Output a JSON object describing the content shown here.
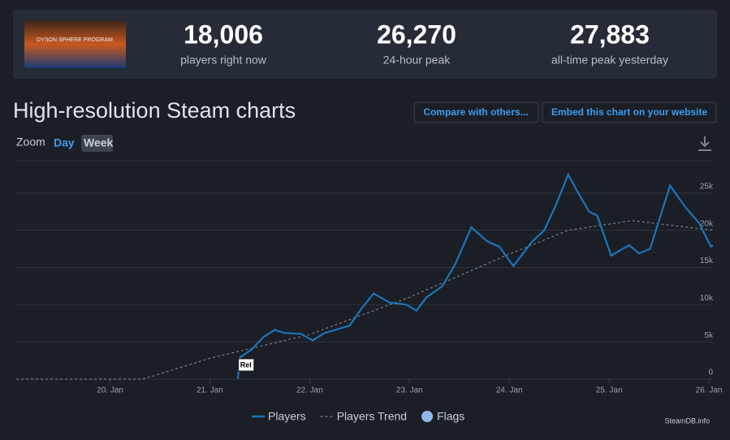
{
  "header": {
    "game_logo_text": "DYSON SPHERE PROGRAM",
    "stats": [
      {
        "value": "18,006",
        "label": "players right now"
      },
      {
        "value": "26,270",
        "label": "24-hour peak"
      },
      {
        "value": "27,883",
        "label": "all-time peak yesterday"
      }
    ]
  },
  "section_title": "High-resolution Steam charts",
  "buttons": [
    "Compare with others...",
    "Embed this chart on your website"
  ],
  "zoom": {
    "label": "Zoom",
    "options": [
      "Day",
      "Week"
    ]
  },
  "credit": "SteamDB.info",
  "chart_data": {
    "type": "line",
    "xlim": [
      19.06,
      26.04
    ],
    "xticks": [
      {
        "value": 20,
        "label": "20. Jan"
      },
      {
        "value": 21,
        "label": "21. Jan"
      },
      {
        "value": 22,
        "label": "22. Jan"
      },
      {
        "value": 23,
        "label": "23. Jan"
      },
      {
        "value": 24,
        "label": "24. Jan"
      },
      {
        "value": 25,
        "label": "25. Jan"
      },
      {
        "value": 26,
        "label": "26. Jan"
      }
    ],
    "ylim": [
      0,
      30000
    ],
    "yticks": [
      0,
      {
        "value": 5000,
        "label": "5k"
      },
      {
        "value": 10000,
        "label": "10k"
      },
      {
        "value": 15000,
        "label": "15k"
      },
      {
        "value": 20000,
        "label": "20k"
      },
      {
        "value": 25000,
        "label": "25k"
      }
    ],
    "grid": true,
    "series": [
      {
        "name": "Players",
        "color": "#1a75bb",
        "dash": false,
        "x": [
          21.28,
          21.3,
          21.42,
          21.54,
          21.65,
          21.75,
          21.91,
          22.03,
          22.15,
          22.28,
          22.4,
          22.52,
          22.64,
          22.8,
          22.97,
          23.07,
          23.17,
          23.33,
          23.46,
          23.62,
          23.78,
          23.9,
          24.04,
          24.23,
          24.35,
          24.47,
          24.59,
          24.67,
          24.8,
          24.88,
          25.02,
          25.2,
          25.3,
          25.41,
          25.61,
          25.77,
          25.9,
          26.02,
          26.04
        ],
        "values": [
          0,
          2900,
          4000,
          5700,
          6600,
          6200,
          6100,
          5200,
          6200,
          6700,
          7200,
          9500,
          11500,
          10300,
          10000,
          9200,
          11000,
          12500,
          15500,
          20400,
          18500,
          17800,
          15200,
          18500,
          20000,
          23500,
          27500,
          25500,
          22500,
          22000,
          16600,
          18000,
          16900,
          17500,
          26000,
          23000,
          21000,
          17800,
          18000
        ]
      },
      {
        "name": "Players Trend",
        "color": "#8a8f98",
        "dash": true,
        "x": [
          19.06,
          20.33,
          21.0,
          22.0,
          23.0,
          24.0,
          24.59,
          25.23,
          26.04
        ],
        "values": [
          0,
          0,
          2800,
          6000,
          11000,
          16800,
          20000,
          21300,
          20000
        ]
      }
    ],
    "flags": {
      "name": "Flags",
      "color": "#8fb8e8",
      "items": [
        {
          "x": 21.36,
          "value": 0,
          "label": "Rel"
        }
      ]
    }
  }
}
